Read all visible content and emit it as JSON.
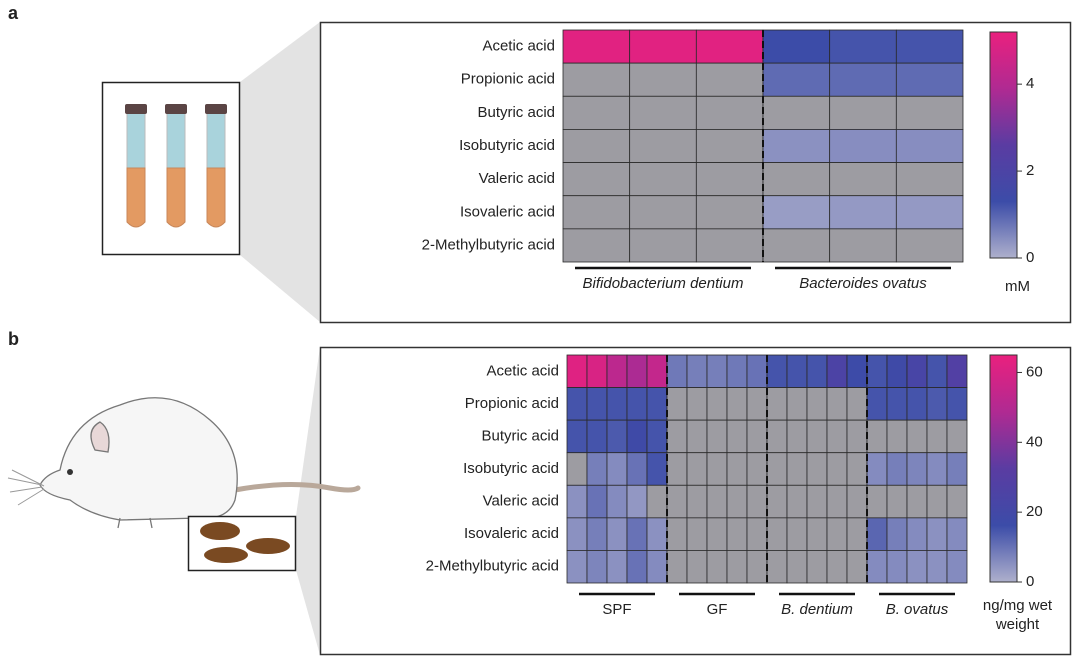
{
  "panel_labels": [
    "a",
    "b"
  ],
  "chart_data": [
    {
      "type": "heatmap",
      "rows": [
        "Acetic acid",
        "Propionic acid",
        "Butyric acid",
        "Isobutyric acid",
        "Valeric acid",
        "Isovaleric acid",
        "2-Methylbutyric acid"
      ],
      "groups": [
        {
          "name": "Bifidobacterium dentium",
          "italic": true
        },
        {
          "name": "Bacteroides ovatus",
          "italic": true
        }
      ],
      "values": [
        [
          5.0,
          5.0,
          5.0,
          1.3,
          1.2,
          1.2
        ],
        [
          null,
          null,
          null,
          0.9,
          0.9,
          0.9
        ],
        [
          null,
          null,
          null,
          null,
          null,
          null
        ],
        [
          null,
          null,
          null,
          0.4,
          0.45,
          0.45
        ],
        [
          null,
          null,
          null,
          null,
          null,
          null
        ],
        [
          null,
          null,
          null,
          0.25,
          0.3,
          0.3
        ],
        [
          null,
          null,
          null,
          null,
          null,
          null
        ]
      ],
      "zlim": [
        0,
        5.2
      ],
      "zticks": [
        0,
        2,
        4
      ],
      "colorbar_label": "mM",
      "colormap": [
        "#aeb0cc",
        "#3c4ca8",
        "#5a3ca2",
        "#b02a92",
        "#ea207e"
      ],
      "na_color": "#9d9ca2"
    },
    {
      "type": "heatmap",
      "rows": [
        "Acetic acid",
        "Propionic acid",
        "Butyric acid",
        "Isobutyric acid",
        "Valeric acid",
        "Isovaleric acid",
        "2-Methylbutyric acid"
      ],
      "groups": [
        {
          "name": "SPF",
          "italic": false
        },
        {
          "name": "GF",
          "italic": false
        },
        {
          "name": "B. dentium",
          "italic": true
        },
        {
          "name": "B. ovatus",
          "italic": true
        }
      ],
      "values": [
        [
          62,
          60,
          52,
          48,
          54,
          9,
          8,
          8,
          9,
          10,
          15,
          15,
          15,
          25,
          17,
          15,
          18,
          23,
          15,
          28
        ],
        [
          15,
          15,
          15,
          15,
          15,
          null,
          null,
          null,
          null,
          null,
          null,
          null,
          null,
          null,
          null,
          15,
          15,
          15,
          14,
          15
        ],
        [
          15,
          15,
          14,
          18,
          15,
          null,
          null,
          null,
          null,
          null,
          null,
          null,
          null,
          null,
          null,
          null,
          null,
          null,
          null,
          null
        ],
        [
          null,
          8,
          6,
          10,
          15,
          null,
          null,
          null,
          null,
          null,
          null,
          null,
          null,
          null,
          null,
          6,
          8,
          7,
          6,
          8
        ],
        [
          5,
          10,
          6,
          4,
          null,
          null,
          null,
          null,
          null,
          null,
          null,
          null,
          null,
          null,
          null,
          null,
          null,
          null,
          null,
          null
        ],
        [
          5,
          8,
          5,
          10,
          5,
          null,
          null,
          null,
          null,
          null,
          null,
          null,
          null,
          null,
          null,
          12,
          8,
          6,
          5,
          6
        ],
        [
          5,
          7,
          5,
          10,
          6,
          null,
          null,
          null,
          null,
          null,
          null,
          null,
          null,
          null,
          null,
          6,
          6,
          5,
          5,
          6
        ]
      ],
      "zlim": [
        0,
        65
      ],
      "zticks": [
        0,
        20,
        40,
        60
      ],
      "colorbar_label": "ng/mg wet weight",
      "colormap": [
        "#aeb0cc",
        "#3c4ca8",
        "#5a3ca2",
        "#b02a92",
        "#ea207e"
      ],
      "na_color": "#9d9ca2"
    }
  ]
}
